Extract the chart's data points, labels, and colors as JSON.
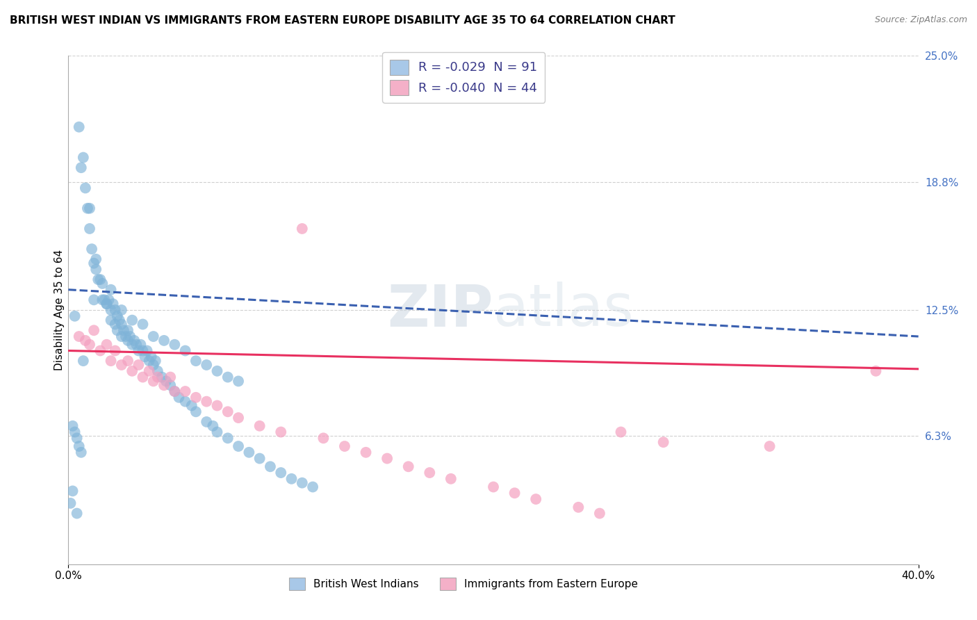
{
  "title": "BRITISH WEST INDIAN VS IMMIGRANTS FROM EASTERN EUROPE DISABILITY AGE 35 TO 64 CORRELATION CHART",
  "source": "Source: ZipAtlas.com",
  "ylabel": "Disability Age 35 to 64",
  "xlim": [
    0.0,
    0.4
  ],
  "ylim": [
    0.0,
    0.25
  ],
  "ytick_labels_right": [
    "25.0%",
    "18.8%",
    "12.5%",
    "6.3%"
  ],
  "ytick_positions_right": [
    0.25,
    0.188,
    0.125,
    0.063
  ],
  "watermark": "ZIPatlas",
  "legend_blue": "R = -0.029  N = 91",
  "legend_pink": "R = -0.040  N = 44",
  "legend_blue_fill": "#a8c8e8",
  "legend_pink_fill": "#f4b0c8",
  "blue_scatter_x": [
    0.002,
    0.004,
    0.005,
    0.006,
    0.007,
    0.008,
    0.009,
    0.01,
    0.01,
    0.011,
    0.012,
    0.013,
    0.013,
    0.014,
    0.015,
    0.016,
    0.016,
    0.017,
    0.018,
    0.019,
    0.02,
    0.02,
    0.021,
    0.022,
    0.022,
    0.023,
    0.023,
    0.024,
    0.025,
    0.025,
    0.026,
    0.027,
    0.028,
    0.028,
    0.029,
    0.03,
    0.031,
    0.032,
    0.033,
    0.034,
    0.035,
    0.036,
    0.037,
    0.038,
    0.039,
    0.04,
    0.041,
    0.042,
    0.044,
    0.046,
    0.048,
    0.05,
    0.052,
    0.055,
    0.058,
    0.06,
    0.065,
    0.068,
    0.07,
    0.075,
    0.08,
    0.085,
    0.09,
    0.095,
    0.1,
    0.105,
    0.11,
    0.115,
    0.003,
    0.007,
    0.012,
    0.018,
    0.02,
    0.025,
    0.03,
    0.035,
    0.04,
    0.045,
    0.05,
    0.055,
    0.06,
    0.065,
    0.07,
    0.075,
    0.08,
    0.002,
    0.003,
    0.004,
    0.005,
    0.006,
    0.001
  ],
  "blue_scatter_y": [
    0.036,
    0.025,
    0.215,
    0.195,
    0.2,
    0.185,
    0.175,
    0.175,
    0.165,
    0.155,
    0.148,
    0.145,
    0.15,
    0.14,
    0.14,
    0.138,
    0.13,
    0.13,
    0.128,
    0.13,
    0.125,
    0.12,
    0.128,
    0.125,
    0.118,
    0.122,
    0.115,
    0.12,
    0.118,
    0.112,
    0.115,
    0.112,
    0.115,
    0.11,
    0.112,
    0.108,
    0.11,
    0.108,
    0.105,
    0.108,
    0.105,
    0.102,
    0.105,
    0.1,
    0.102,
    0.098,
    0.1,
    0.095,
    0.092,
    0.09,
    0.088,
    0.085,
    0.082,
    0.08,
    0.078,
    0.075,
    0.07,
    0.068,
    0.065,
    0.062,
    0.058,
    0.055,
    0.052,
    0.048,
    0.045,
    0.042,
    0.04,
    0.038,
    0.122,
    0.1,
    0.13,
    0.128,
    0.135,
    0.125,
    0.12,
    0.118,
    0.112,
    0.11,
    0.108,
    0.105,
    0.1,
    0.098,
    0.095,
    0.092,
    0.09,
    0.068,
    0.065,
    0.062,
    0.058,
    0.055,
    0.03
  ],
  "pink_scatter_x": [
    0.005,
    0.008,
    0.01,
    0.012,
    0.015,
    0.018,
    0.02,
    0.022,
    0.025,
    0.028,
    0.03,
    0.033,
    0.035,
    0.038,
    0.04,
    0.042,
    0.045,
    0.048,
    0.05,
    0.055,
    0.06,
    0.065,
    0.07,
    0.075,
    0.08,
    0.09,
    0.1,
    0.11,
    0.12,
    0.13,
    0.14,
    0.15,
    0.16,
    0.17,
    0.18,
    0.2,
    0.21,
    0.22,
    0.24,
    0.25,
    0.26,
    0.28,
    0.33,
    0.38
  ],
  "pink_scatter_y": [
    0.112,
    0.11,
    0.108,
    0.115,
    0.105,
    0.108,
    0.1,
    0.105,
    0.098,
    0.1,
    0.095,
    0.098,
    0.092,
    0.095,
    0.09,
    0.092,
    0.088,
    0.092,
    0.085,
    0.085,
    0.082,
    0.08,
    0.078,
    0.075,
    0.072,
    0.068,
    0.065,
    0.165,
    0.062,
    0.058,
    0.055,
    0.052,
    0.048,
    0.045,
    0.042,
    0.038,
    0.035,
    0.032,
    0.028,
    0.025,
    0.065,
    0.06,
    0.058,
    0.095
  ],
  "blue_trend_x": [
    0.0,
    0.4
  ],
  "blue_trend_y": [
    0.135,
    0.112
  ],
  "pink_trend_x": [
    0.0,
    0.4
  ],
  "pink_trend_y": [
    0.105,
    0.096
  ],
  "grid_color": "#d0d0d0",
  "blue_color": "#7fb3d8",
  "pink_color": "#f4a0c0",
  "blue_line_color": "#3a60b0",
  "pink_line_color": "#e83060",
  "background_color": "#ffffff",
  "title_fontsize": 11,
  "label_fontsize": 11,
  "tick_fontsize": 11
}
